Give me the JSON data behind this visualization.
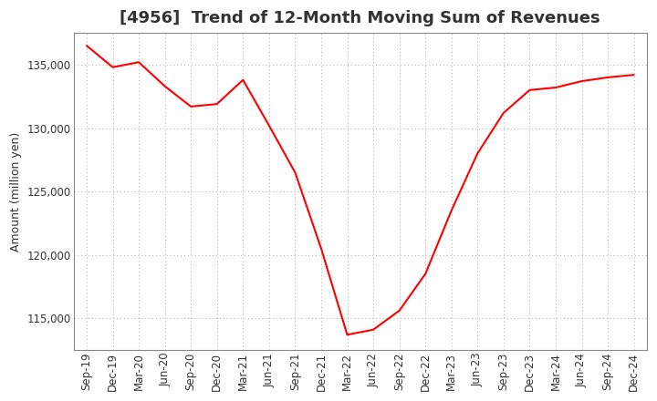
{
  "title": "[4956]  Trend of 12-Month Moving Sum of Revenues",
  "ylabel": "Amount (million yen)",
  "line_color": "#FF0000",
  "background_color": "#FFFFFF",
  "plot_bg_color": "#FFFFFF",
  "grid_color": "#AAAAAA",
  "labels": [
    "Sep-19",
    "Dec-19",
    "Mar-20",
    "Jun-20",
    "Sep-20",
    "Dec-20",
    "Mar-21",
    "Jun-21",
    "Sep-21",
    "Dec-21",
    "Mar-22",
    "Jun-22",
    "Sep-22",
    "Dec-22",
    "Mar-23",
    "Jun-23",
    "Sep-23",
    "Dec-23",
    "Mar-24",
    "Jun-24",
    "Sep-24",
    "Dec-24"
  ],
  "values": [
    136500,
    134800,
    135200,
    133300,
    131700,
    131900,
    133800,
    130200,
    126500,
    120500,
    113700,
    114100,
    115600,
    118500,
    123500,
    128000,
    131200,
    133000,
    133200,
    133700,
    134000,
    134200
  ],
  "ylim_min": 112500,
  "ylim_max": 137500,
  "yticks": [
    115000,
    120000,
    125000,
    130000,
    135000
  ],
  "title_fontsize": 13,
  "label_fontsize": 9,
  "tick_fontsize": 8.5
}
